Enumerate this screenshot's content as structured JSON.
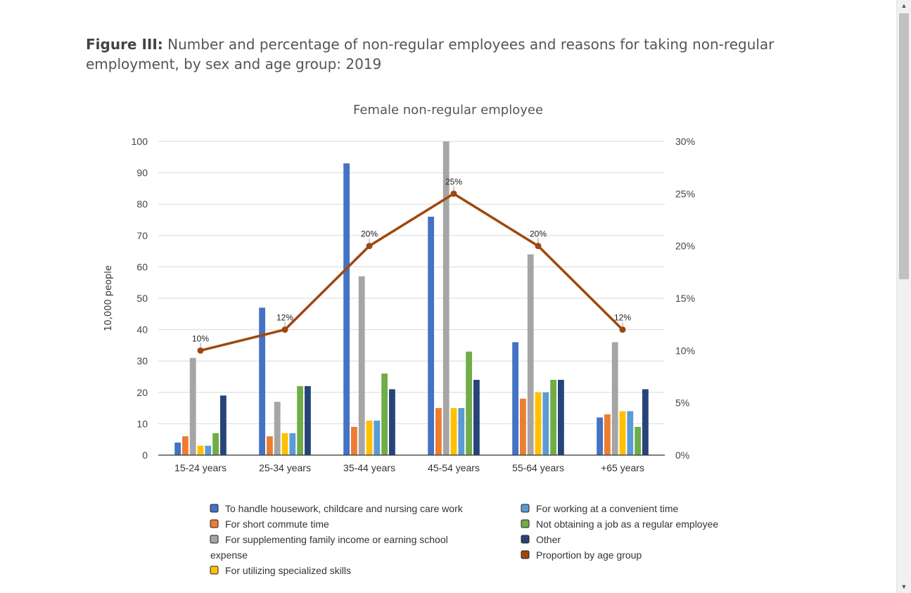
{
  "figure": {
    "label": "Figure III:",
    "title": "Number and percentage of non-regular employees and reasons for taking non-regular employment, by sex and age group: 2019"
  },
  "chart_data": {
    "type": "bar",
    "title": "Female non-regular employee",
    "ylabel": "10,000 people",
    "ylim": [
      0,
      100
    ],
    "yticks": [
      "0",
      "10",
      "20",
      "30",
      "40",
      "50",
      "60",
      "70",
      "80",
      "90",
      "100"
    ],
    "y2lim": [
      0,
      30
    ],
    "y2ticks": [
      "0%",
      "5%",
      "10%",
      "15%",
      "20%",
      "25%",
      "30%"
    ],
    "categories": [
      "15-24 years",
      "25-34 years",
      "35-44 years",
      "45-54 years",
      "55-64 years",
      "+65 years"
    ],
    "series": [
      {
        "name": "To handle housework, childcare and nursing care work",
        "color": "#4472c4",
        "values": [
          4,
          47,
          93,
          76,
          36,
          12
        ]
      },
      {
        "name": "For short commute time",
        "color": "#ed7d31",
        "values": [
          6,
          6,
          9,
          15,
          18,
          13
        ]
      },
      {
        "name": "For supplementing family income or earning school expense",
        "color": "#a5a5a5",
        "values": [
          31,
          17,
          57,
          100,
          64,
          36
        ]
      },
      {
        "name": "For utilizing specialized skills",
        "color": "#ffc000",
        "values": [
          3,
          7,
          11,
          15,
          20,
          14
        ]
      },
      {
        "name": "For working at a convenient time",
        "color": "#5b9bd5",
        "values": [
          3,
          7,
          11,
          15,
          20,
          14
        ]
      },
      {
        "name": "Not obtaining a job as a regular employee",
        "color": "#70ad47",
        "values": [
          7,
          22,
          26,
          33,
          24,
          9
        ]
      },
      {
        "name": "Other",
        "color": "#264478",
        "values": [
          19,
          22,
          21,
          24,
          24,
          21
        ]
      }
    ],
    "line_series": {
      "name": "Proportion by age group",
      "color": "#9e480e",
      "axis": "right",
      "values": [
        10,
        12,
        20,
        25,
        20,
        12
      ],
      "labels": [
        "10%",
        "12%",
        "20%",
        "25%",
        "20%",
        "12%"
      ]
    },
    "grid": true,
    "legend_position": "bottom",
    "legend_columns": {
      "left": [
        "To handle housework, childcare and nursing care work",
        "For short commute time",
        "For supplementing family income or earning school expense",
        "For utilizing specialized skills"
      ],
      "right": [
        "For working at a convenient time",
        "Not obtaining a job as a regular employee",
        "Other",
        "Proportion by age group"
      ]
    }
  },
  "scrollbar": {
    "up_icon": "triangle-up-icon",
    "down_icon": "triangle-down-icon"
  }
}
